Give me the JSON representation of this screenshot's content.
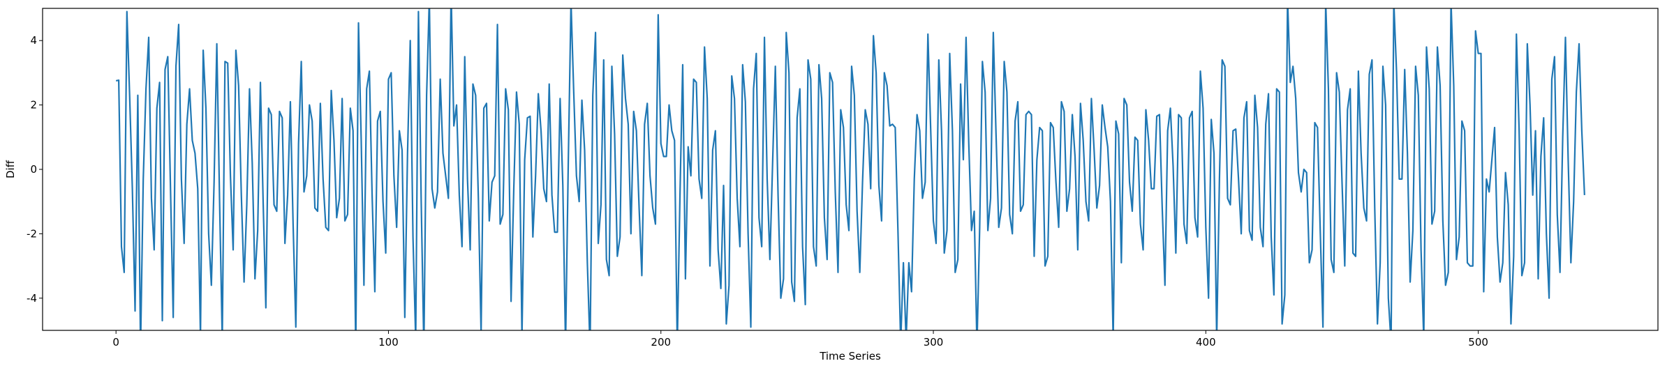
{
  "chart_data": {
    "type": "line",
    "xlabel": "Time Series",
    "ylabel": "Diff",
    "color": "#1f77b4",
    "xlim": [
      -26.95,
      565.95
    ],
    "xticks": [
      0,
      100,
      200,
      300,
      400,
      500
    ],
    "ylim": [
      -5,
      5
    ],
    "yticks": [
      -4,
      -2,
      0,
      2,
      4
    ],
    "values": [
      2.75,
      2.77,
      -2.4,
      -3.2,
      4.9,
      2.3,
      -0.6,
      -4.4,
      2.3,
      -5.6,
      -0.3,
      2.5,
      4.1,
      -0.9,
      -2.5,
      1.9,
      2.7,
      -4.7,
      3.1,
      3.5,
      -0.6,
      -4.6,
      3.2,
      4.5,
      -0.3,
      -2.3,
      1.4,
      2.5,
      0.9,
      0.5,
      -0.6,
      -5.2,
      3.7,
      1.9,
      -2.0,
      -3.6,
      -0.4,
      3.9,
      -0.9,
      -5.3,
      3.35,
      3.3,
      -0.2,
      -2.5,
      3.7,
      2.6,
      -0.8,
      -3.5,
      -1.1,
      2.5,
      0.2,
      -3.4,
      -1.9,
      2.7,
      -1.0,
      -4.3,
      1.9,
      1.7,
      -1.1,
      -1.3,
      1.8,
      1.6,
      -2.3,
      -0.8,
      2.1,
      -1.7,
      -4.9,
      0.8,
      3.35,
      -0.7,
      -0.2,
      2.0,
      1.5,
      -1.2,
      -1.3,
      2.05,
      -0.3,
      -1.8,
      -1.9,
      2.45,
      0.9,
      -1.5,
      -0.9,
      2.2,
      -1.6,
      -1.4,
      1.9,
      1.2,
      -5.6,
      4.55,
      0.9,
      -3.6,
      2.5,
      3.05,
      -0.8,
      -3.8,
      1.5,
      1.8,
      -1.0,
      -2.6,
      2.8,
      3.0,
      -0.2,
      -1.8,
      1.2,
      0.6,
      -4.6,
      0.5,
      4.0,
      -2.1,
      -5.3,
      4.9,
      -0.9,
      -5.6,
      2.3,
      5.3,
      -0.6,
      -1.2,
      -0.7,
      2.8,
      0.5,
      -0.2,
      -0.9,
      5.5,
      1.35,
      2.0,
      -0.8,
      -2.4,
      3.5,
      -0.3,
      -2.5,
      2.65,
      2.3,
      -0.9,
      -5.1,
      1.9,
      2.05,
      -1.6,
      -0.4,
      -0.2,
      4.5,
      -1.7,
      -1.4,
      2.5,
      1.85,
      -4.1,
      -0.6,
      2.4,
      1.4,
      -5.2,
      0.3,
      1.6,
      1.65,
      -2.1,
      -0.2,
      2.35,
      1.2,
      -0.6,
      -1.0,
      2.65,
      -0.8,
      -1.95,
      -1.95,
      2.2,
      -0.5,
      -5.5,
      0.2,
      5.2,
      2.4,
      -0.2,
      -1.0,
      2.15,
      0.6,
      -2.9,
      -5.6,
      2.3,
      4.25,
      -2.3,
      -1.1,
      3.4,
      -2.8,
      -3.3,
      3.2,
      1.1,
      -2.7,
      -2.1,
      3.55,
      2.2,
      1.4,
      -2.0,
      1.8,
      1.2,
      -1.2,
      -3.3,
      1.4,
      2.05,
      -0.2,
      -1.2,
      -1.7,
      4.8,
      0.8,
      0.4,
      0.4,
      2.0,
      1.2,
      0.9,
      -5.5,
      -0.8,
      3.25,
      -3.4,
      0.7,
      -0.2,
      2.8,
      2.7,
      -0.3,
      -0.9,
      3.8,
      2.2,
      -3.0,
      0.6,
      1.2,
      -2.5,
      -3.7,
      -0.5,
      -4.8,
      -3.6,
      2.9,
      2.2,
      -0.9,
      -2.4,
      3.25,
      2.1,
      -2.0,
      -4.9,
      2.5,
      3.6,
      -1.5,
      -2.4,
      4.1,
      -0.3,
      -2.8,
      0.2,
      3.2,
      -0.8,
      -4.0,
      -3.4,
      4.25,
      3.0,
      -3.5,
      -4.1,
      1.6,
      2.5,
      -2.4,
      -4.2,
      3.4,
      2.8,
      -2.4,
      -3.0,
      3.25,
      2.2,
      -1.5,
      -2.8,
      3.0,
      2.7,
      -0.7,
      -3.2,
      1.85,
      1.3,
      -1.1,
      -1.9,
      3.2,
      2.3,
      -1.3,
      -3.2,
      -0.4,
      1.85,
      1.4,
      -0.6,
      4.15,
      3.0,
      -0.5,
      -1.6,
      3.0,
      2.6,
      1.35,
      1.4,
      1.3,
      -1.9,
      -5.4,
      -2.9,
      -5.3,
      -2.9,
      -3.8,
      -0.3,
      1.7,
      1.2,
      -0.9,
      -0.4,
      4.2,
      1.3,
      -1.6,
      -2.3,
      3.4,
      1.2,
      -2.6,
      -1.9,
      3.6,
      1.2,
      -3.2,
      -2.8,
      2.65,
      0.3,
      4.1,
      0.8,
      -1.9,
      -1.3,
      -5.5,
      -1.8,
      3.35,
      2.4,
      -1.9,
      -0.9,
      4.25,
      1.1,
      -1.8,
      -1.2,
      3.35,
      2.4,
      -1.4,
      -2.0,
      1.5,
      2.1,
      -1.3,
      -1.1,
      1.7,
      1.8,
      1.7,
      -2.7,
      0.3,
      1.3,
      1.2,
      -3.0,
      -2.7,
      1.45,
      1.3,
      -0.4,
      -1.8,
      2.1,
      1.8,
      -1.3,
      -0.6,
      1.7,
      0.4,
      -2.5,
      2.05,
      0.9,
      -1.0,
      -1.6,
      2.2,
      0.6,
      -1.2,
      -0.5,
      2.0,
      1.3,
      0.7,
      -1.0,
      -5.3,
      1.5,
      1.1,
      -2.9,
      2.2,
      2.0,
      -0.4,
      -1.3,
      1.0,
      0.9,
      -1.7,
      -2.5,
      1.85,
      0.9,
      -0.6,
      -0.6,
      1.65,
      1.7,
      -1.2,
      -3.6,
      1.2,
      1.9,
      0.1,
      -2.6,
      1.7,
      1.6,
      -1.7,
      -2.3,
      1.6,
      1.8,
      -1.5,
      -2.1,
      3.05,
      1.9,
      -1.8,
      -4.0,
      1.55,
      0.5,
      -5.3,
      -0.3,
      3.4,
      3.2,
      -0.9,
      -1.1,
      1.2,
      1.25,
      -0.3,
      -2.0,
      1.6,
      2.1,
      -1.9,
      -2.2,
      2.3,
      1.3,
      -1.8,
      -2.4,
      1.4,
      2.35,
      -2.1,
      -3.9,
      2.5,
      2.4,
      -4.8,
      -3.9,
      5.3,
      2.7,
      3.2,
      2.2,
      -0.1,
      -0.7,
      0.0,
      -0.1,
      -2.9,
      -2.5,
      1.45,
      1.3,
      -1.9,
      -4.9,
      5.2,
      2.5,
      -2.8,
      -3.2,
      3.0,
      2.4,
      -0.4,
      -3.0,
      1.85,
      2.5,
      -2.6,
      -2.7,
      3.05,
      0.5,
      -1.2,
      -1.6,
      2.95,
      3.4,
      -1.2,
      -4.8,
      -2.9,
      3.2,
      2.0,
      -4.0,
      -5.4,
      5.2,
      3.05,
      -0.3,
      -0.3,
      3.1,
      0.5,
      -3.5,
      -1.9,
      3.2,
      2.3,
      -2.5,
      -5.3,
      3.8,
      2.5,
      -1.7,
      -1.3,
      3.8,
      2.6,
      -1.6,
      -3.6,
      -3.2,
      5.2,
      2.6,
      -2.8,
      -2.1,
      1.5,
      1.2,
      -2.9,
      -3.0,
      -3.0,
      4.3,
      3.6,
      3.6,
      -3.8,
      -0.3,
      -0.7,
      0.3,
      1.3,
      -2.1,
      -3.5,
      -2.9,
      -0.1,
      -1.1,
      -4.8,
      -2.7,
      4.2,
      1.2,
      -3.3,
      -2.9,
      3.9,
      2.0,
      -0.8,
      1.2,
      -3.4,
      0.4,
      1.6,
      -2.0,
      -4.0,
      2.8,
      3.5,
      -1.4,
      -3.2,
      1.0,
      4.1,
      0.3,
      -2.9,
      -1.0,
      2.4,
      3.9,
      1.2,
      -0.8
    ]
  }
}
